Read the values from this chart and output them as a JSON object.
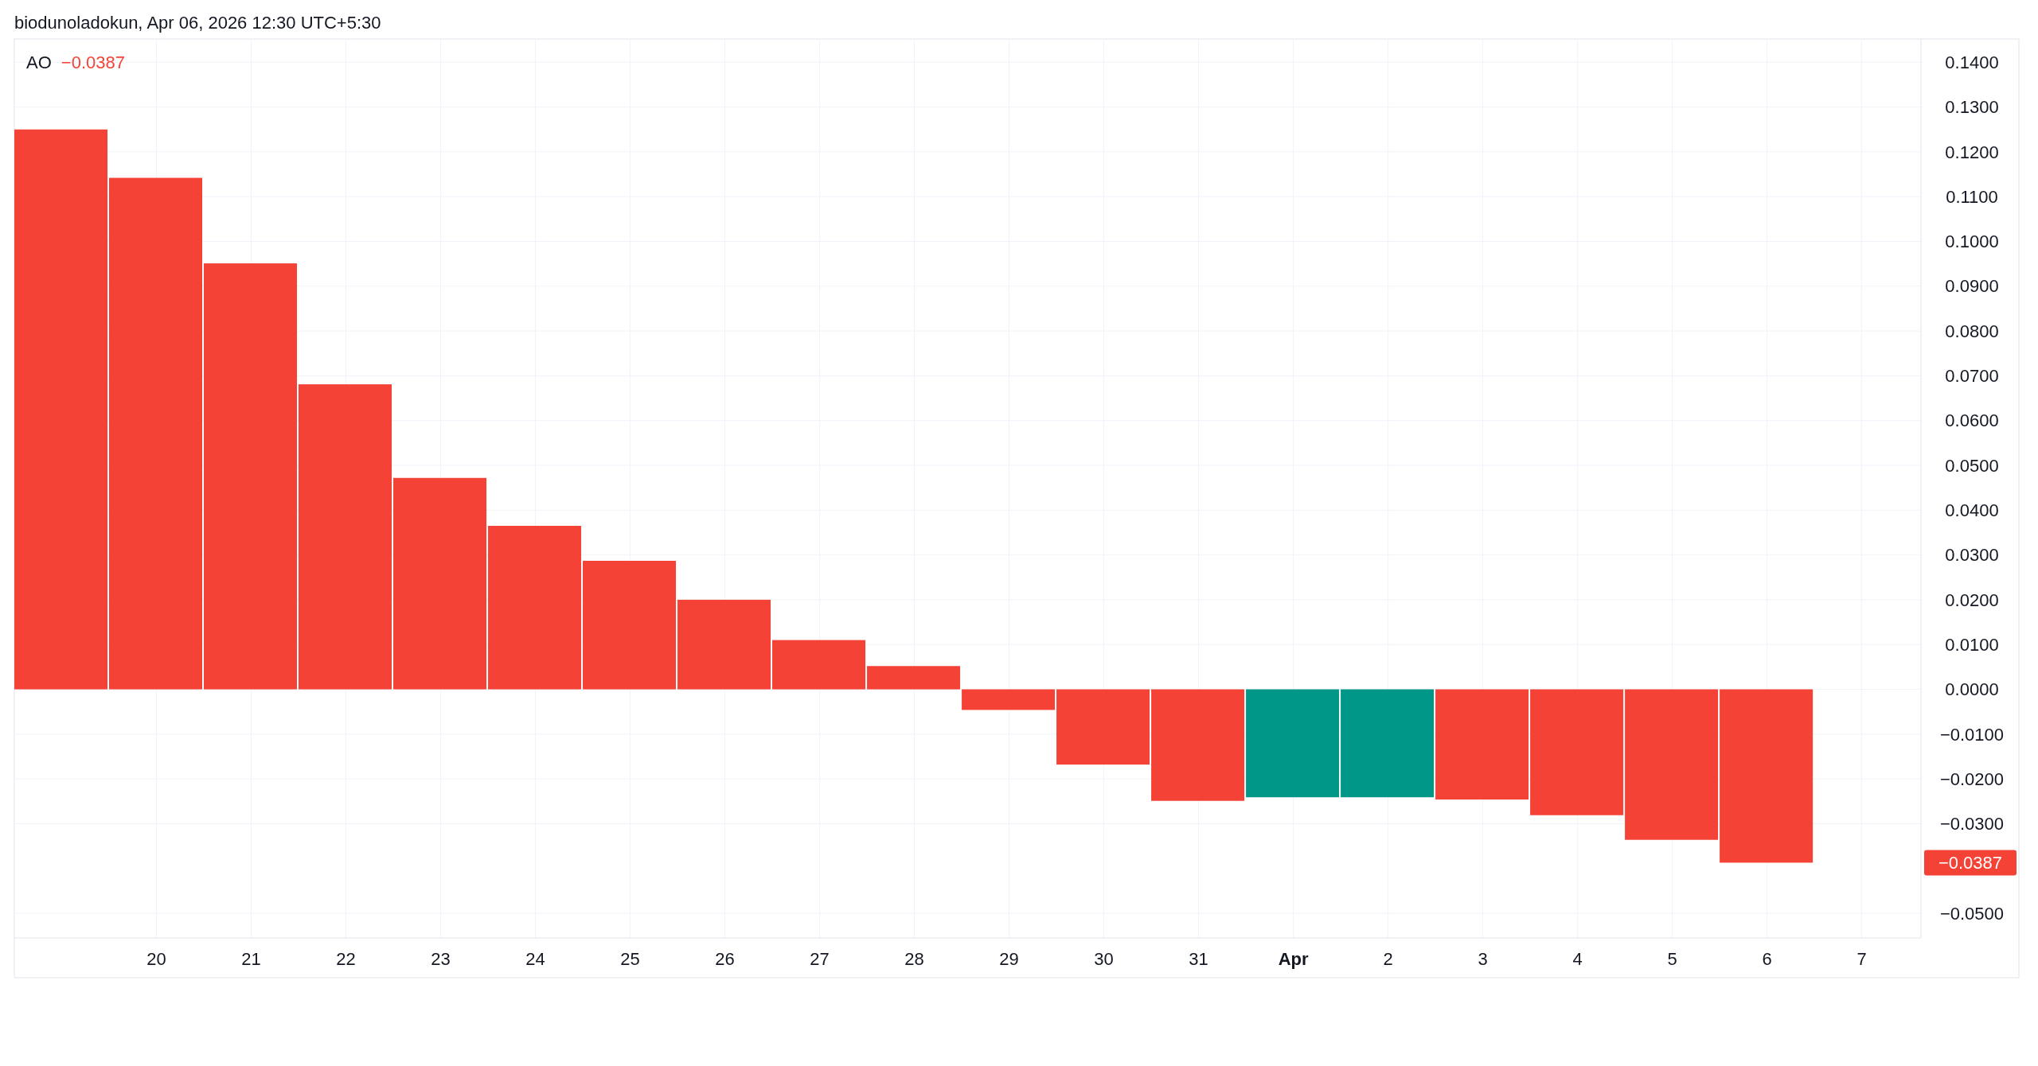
{
  "chart_data": {
    "type": "bar",
    "annotations": [
      "biodunoladokun, Apr 06, 2026 12:30 UTC+5:30",
      "−0.0387",
      "−0.0387"
    ],
    "x": [
      "2026-03-19",
      "2026-03-20",
      "2026-03-21",
      "2026-03-22",
      "2026-03-23",
      "2026-03-24",
      "2026-03-25",
      "2026-03-26",
      "2026-03-27",
      "2026-03-28",
      "2026-03-29",
      "2026-03-30",
      "2026-03-31",
      "2026-04-01",
      "2026-04-02",
      "2026-04-03",
      "2026-04-04",
      "2026-04-05",
      "2026-04-06"
    ],
    "series": [
      {
        "name": "AO",
        "values": [
          0.125,
          0.1142,
          0.0951,
          0.0681,
          0.0472,
          0.0365,
          0.0287,
          0.02,
          0.011,
          0.0052,
          -0.0046,
          -0.0168,
          -0.0249,
          -0.0241,
          -0.0241,
          -0.0246,
          -0.0281,
          -0.0336,
          -0.0387
        ],
        "colors": [
          "#f44336",
          "#f44336",
          "#f44336",
          "#f44336",
          "#f44336",
          "#f44336",
          "#f44336",
          "#f44336",
          "#f44336",
          "#f44336",
          "#f44336",
          "#f44336",
          "#f44336",
          "#009688",
          "#009688",
          "#f44336",
          "#f44336",
          "#f44336",
          "#f44336"
        ]
      }
    ],
    "xlim": [
      "2026-03-18T12:00",
      "2026-04-07T15:00"
    ],
    "xticks": [
      {
        "value": "2026-03-20",
        "label": "20"
      },
      {
        "value": "2026-03-21",
        "label": "21"
      },
      {
        "value": "2026-03-22",
        "label": "22"
      },
      {
        "value": "2026-03-23",
        "label": "23"
      },
      {
        "value": "2026-03-24",
        "label": "24"
      },
      {
        "value": "2026-03-25",
        "label": "25"
      },
      {
        "value": "2026-03-26",
        "label": "26"
      },
      {
        "value": "2026-03-27",
        "label": "27"
      },
      {
        "value": "2026-03-28",
        "label": "28"
      },
      {
        "value": "2026-03-29",
        "label": "29"
      },
      {
        "value": "2026-03-30",
        "label": "30"
      },
      {
        "value": "2026-03-31",
        "label": "31"
      },
      {
        "value": "2026-04-01",
        "label": "Apr"
      },
      {
        "value": "2026-04-02",
        "label": "2"
      },
      {
        "value": "2026-04-03",
        "label": "3"
      },
      {
        "value": "2026-04-04",
        "label": "4"
      },
      {
        "value": "2026-04-05",
        "label": "5"
      },
      {
        "value": "2026-04-06",
        "label": "6"
      },
      {
        "value": "2026-04-07",
        "label": "7"
      }
    ],
    "ylim": [
      -0.0555,
      0.1452
    ],
    "yticks": [
      {
        "value": -0.05,
        "label": "−0.0500"
      },
      {
        "value": -0.03,
        "label": "−0.0300"
      },
      {
        "value": -0.02,
        "label": "−0.0200"
      },
      {
        "value": -0.01,
        "label": "−0.0100"
      },
      {
        "value": 0,
        "label": "0.0000"
      },
      {
        "value": 0.01,
        "label": "0.0100"
      },
      {
        "value": 0.02,
        "label": "0.0200"
      },
      {
        "value": 0.03,
        "label": "0.0300"
      },
      {
        "value": 0.04,
        "label": "0.0400"
      },
      {
        "value": 0.05,
        "label": "0.0500"
      },
      {
        "value": 0.06,
        "label": "0.0600"
      },
      {
        "value": 0.07,
        "label": "0.0700"
      },
      {
        "value": 0.08,
        "label": "0.0800"
      },
      {
        "value": 0.09,
        "label": "0.0900"
      },
      {
        "value": 0.1,
        "label": "0.1000"
      },
      {
        "value": 0.11,
        "label": "0.1100"
      },
      {
        "value": 0.12,
        "label": "0.1200"
      },
      {
        "value": 0.13,
        "label": "0.1300"
      },
      {
        "value": 0.14,
        "label": "0.1400"
      }
    ],
    "grid": true,
    "legend": "top left"
  }
}
